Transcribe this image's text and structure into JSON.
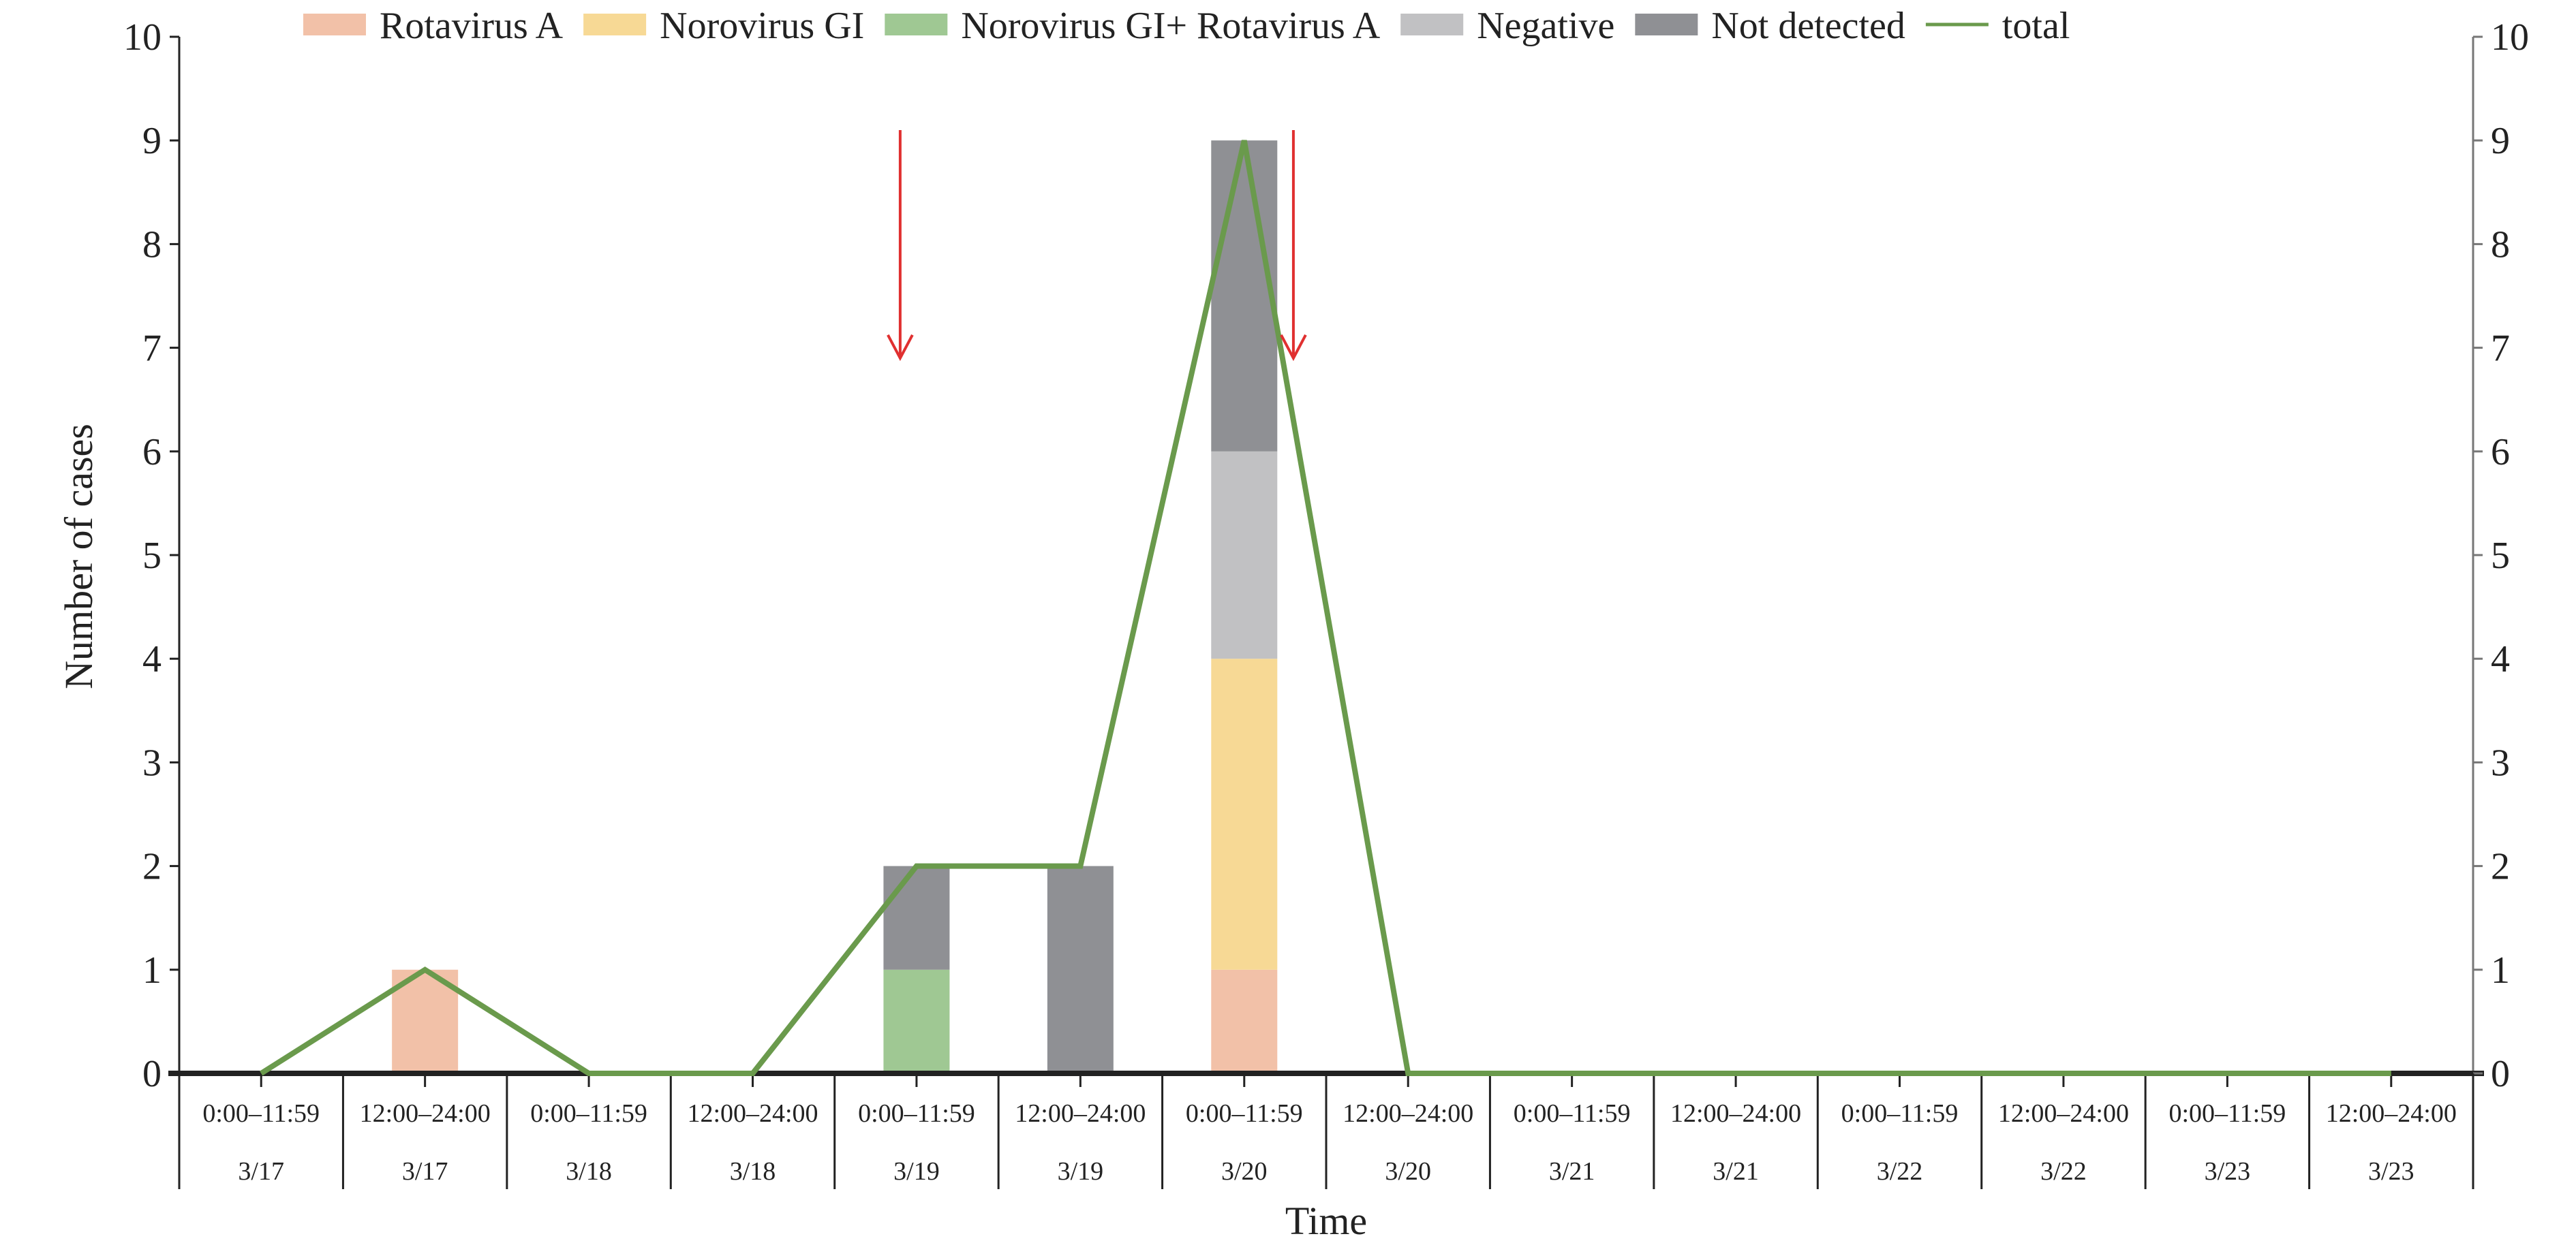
{
  "chart_data": {
    "type": "bar",
    "stacked": true,
    "title": "",
    "xlabel": "Time",
    "ylabel": "Number of cases",
    "ylim": [
      0,
      10
    ],
    "y2lim": [
      0,
      10
    ],
    "yticks": [
      "0",
      "1",
      "2",
      "3",
      "4",
      "5",
      "6",
      "7",
      "8",
      "9",
      "10"
    ],
    "categories": [
      {
        "time": "0:00–11:59",
        "date": "3/17"
      },
      {
        "time": "12:00–24:00",
        "date": "3/17"
      },
      {
        "time": "0:00–11:59",
        "date": "3/18"
      },
      {
        "time": "12:00–24:00",
        "date": "3/18"
      },
      {
        "time": "0:00–11:59",
        "date": "3/19"
      },
      {
        "time": "12:00–24:00",
        "date": "3/19"
      },
      {
        "time": "0:00–11:59",
        "date": "3/20"
      },
      {
        "time": "12:00–24:00",
        "date": "3/20"
      },
      {
        "time": "0:00–11:59",
        "date": "3/21"
      },
      {
        "time": "12:00–24:00",
        "date": "3/21"
      },
      {
        "time": "0:00–11:59",
        "date": "3/22"
      },
      {
        "time": "12:00–24:00",
        "date": "3/22"
      },
      {
        "time": "0:00–11:59",
        "date": "3/23"
      },
      {
        "time": "12:00–24:00",
        "date": "3/23"
      }
    ],
    "series": [
      {
        "name": "Rotavirus A",
        "color": "#f2c1a8",
        "values": [
          0,
          1,
          0,
          0,
          0,
          0,
          1,
          0,
          0,
          0,
          0,
          0,
          0,
          0
        ]
      },
      {
        "name": "Norovirus GI",
        "color": "#f7d995",
        "values": [
          0,
          0,
          0,
          0,
          0,
          0,
          3,
          0,
          0,
          0,
          0,
          0,
          0,
          0
        ]
      },
      {
        "name": "Norovirus GI+ Rotavirus A",
        "color": "#9fc893",
        "values": [
          0,
          0,
          0,
          0,
          1,
          0,
          0,
          0,
          0,
          0,
          0,
          0,
          0,
          0
        ]
      },
      {
        "name": "Negative",
        "color": "#c1c1c3",
        "values": [
          0,
          0,
          0,
          0,
          0,
          0,
          2,
          0,
          0,
          0,
          0,
          0,
          0,
          0
        ]
      },
      {
        "name": "Not detected",
        "color": "#8f9094",
        "values": [
          0,
          0,
          0,
          0,
          1,
          2,
          3,
          0,
          0,
          0,
          0,
          0,
          0,
          0
        ]
      }
    ],
    "line": {
      "name": "total",
      "color": "#6a9a4c",
      "values": [
        0,
        1,
        0,
        0,
        2,
        2,
        9,
        0,
        0,
        0,
        0,
        0,
        0,
        0
      ]
    },
    "annotations": [
      {
        "type": "arrow",
        "color": "#e03030",
        "x_category_index": 4.4,
        "y_from": 9.1,
        "y_to": 6.9
      },
      {
        "type": "arrow",
        "color": "#e03030",
        "x_category_index": 6.8,
        "y_from": 9.1,
        "y_to": 6.9
      }
    ],
    "legend_position": "top",
    "grid": false
  }
}
